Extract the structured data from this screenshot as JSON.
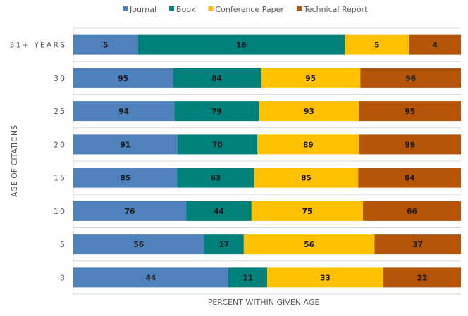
{
  "chart_data": {
    "type": "bar",
    "orientation": "horizontal",
    "stacking": "percent",
    "categories": [
      "31+ YEARS",
      "30",
      "25",
      "20",
      "15",
      "10",
      "5",
      "3"
    ],
    "series": [
      {
        "name": "Journal",
        "color": "#4f81bd",
        "values": [
          5,
          95,
          94,
          91,
          85,
          76,
          56,
          44
        ]
      },
      {
        "name": "Book",
        "color": "#00807a",
        "values": [
          16,
          84,
          79,
          70,
          63,
          44,
          17,
          11
        ]
      },
      {
        "name": "Conference Paper",
        "color": "#ffc000",
        "values": [
          5,
          95,
          93,
          89,
          85,
          75,
          56,
          33
        ]
      },
      {
        "name": "Technical Report",
        "color": "#b35407",
        "values": [
          4,
          96,
          95,
          89,
          84,
          66,
          37,
          22
        ]
      }
    ],
    "xlabel": "PERCENT WITHIN GIVEN AGE",
    "ylabel": "AGE OF CITATIONS",
    "legend": "top",
    "grid": "horizontal separators"
  }
}
